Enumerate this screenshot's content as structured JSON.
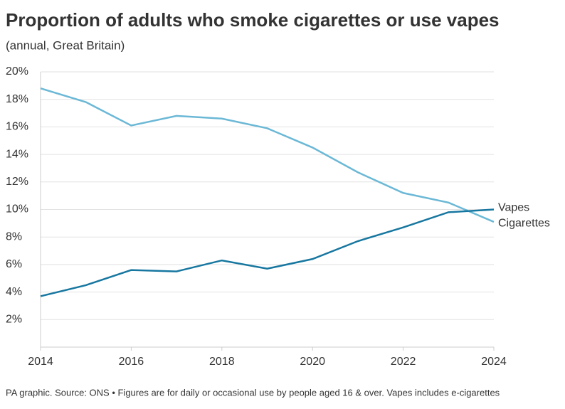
{
  "chart_data": {
    "type": "line",
    "title": "Proportion of adults who smoke cigarettes or use vapes",
    "subtitle": "(annual, Great Britain)",
    "source": "PA graphic. Source: ONS • Figures are for daily or occasional use by people aged 16 & over. Vapes includes e-cigarettes",
    "x": [
      2014,
      2015,
      2016,
      2017,
      2018,
      2019,
      2020,
      2021,
      2022,
      2023,
      2024
    ],
    "series": [
      {
        "name": "Cigarettes",
        "color": "#6bb8d6",
        "values": [
          18.8,
          17.8,
          16.1,
          16.8,
          16.6,
          15.9,
          14.5,
          12.7,
          11.2,
          10.5,
          9.1
        ]
      },
      {
        "name": "Vapes",
        "color": "#1777a0",
        "values": [
          3.7,
          4.5,
          5.6,
          5.5,
          6.3,
          5.7,
          6.4,
          7.7,
          8.7,
          9.8,
          10.0
        ]
      }
    ],
    "xlim": [
      2014,
      2024
    ],
    "xticks": [
      2014,
      2016,
      2018,
      2020,
      2022,
      2024
    ],
    "ylim": [
      0,
      20
    ],
    "yticks": [
      {
        "value": 2,
        "label": "2%"
      },
      {
        "value": 4,
        "label": "4%"
      },
      {
        "value": 6,
        "label": "6%"
      },
      {
        "value": 8,
        "label": "8%"
      },
      {
        "value": 10,
        "label": "10%"
      },
      {
        "value": 12,
        "label": "12%"
      },
      {
        "value": 14,
        "label": "14%"
      },
      {
        "value": 16,
        "label": "16%"
      },
      {
        "value": 18,
        "label": "18%"
      },
      {
        "value": 20,
        "label": "20%"
      }
    ],
    "grid": true
  }
}
